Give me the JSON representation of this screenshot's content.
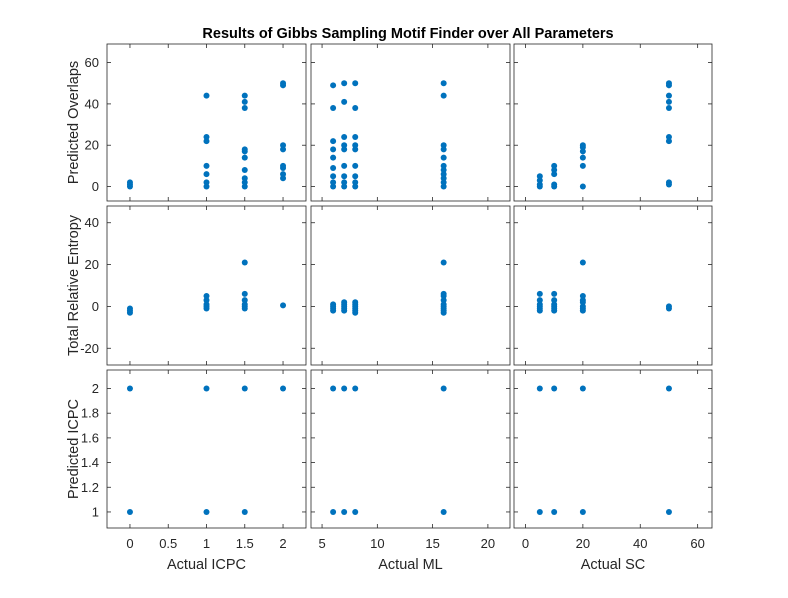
{
  "chart_data": {
    "type": "scatter",
    "title": "Results of Gibbs Sampling Motif Finder over All Parameters",
    "marker_color": "#0072BD",
    "grid": false,
    "columns": [
      {
        "xlabel": "Actual ICPC",
        "xlim": [
          -0.3,
          2.3
        ],
        "xticks": [
          0,
          0.5,
          1,
          1.5,
          2
        ],
        "xtick_labels": [
          "0",
          "0.5",
          "1",
          "1.5",
          "2"
        ]
      },
      {
        "xlabel": "Actual ML",
        "xlim": [
          4,
          22
        ],
        "xticks": [
          5,
          10,
          15,
          20
        ],
        "xtick_labels": [
          "5",
          "10",
          "15",
          "20"
        ]
      },
      {
        "xlabel": "Actual SC",
        "xlim": [
          -4,
          65
        ],
        "xticks": [
          0,
          20,
          40,
          60
        ],
        "xtick_labels": [
          "0",
          "20",
          "40",
          "60"
        ]
      }
    ],
    "rows": [
      {
        "ylabel": "Predicted Overlaps",
        "ylim": [
          -7,
          69
        ],
        "yticks": [
          0,
          20,
          40,
          60
        ],
        "ytick_labels": [
          "0",
          "20",
          "40",
          "60"
        ]
      },
      {
        "ylabel": "Total Relative Entropy",
        "ylim": [
          -28,
          48
        ],
        "yticks": [
          -20,
          0,
          20,
          40
        ],
        "ytick_labels": [
          "-20",
          "0",
          "20",
          "40"
        ]
      },
      {
        "ylabel": "Predicted ICPC",
        "ylim": [
          0.87,
          2.15
        ],
        "yticks": [
          1,
          1.2,
          1.4,
          1.6,
          1.8,
          2
        ],
        "ytick_labels": [
          "1",
          "1.2",
          "1.4",
          "1.6",
          "1.8",
          "2"
        ]
      }
    ],
    "panels": [
      {
        "row": 0,
        "col": 0,
        "points": [
          [
            0,
            0
          ],
          [
            0,
            1
          ],
          [
            0,
            2
          ],
          [
            1,
            0
          ],
          [
            1,
            2
          ],
          [
            1,
            6
          ],
          [
            1,
            10
          ],
          [
            1,
            22
          ],
          [
            1,
            24
          ],
          [
            1,
            44
          ],
          [
            1.5,
            0
          ],
          [
            1.5,
            2
          ],
          [
            1.5,
            4
          ],
          [
            1.5,
            8
          ],
          [
            1.5,
            14
          ],
          [
            1.5,
            17
          ],
          [
            1.5,
            18
          ],
          [
            1.5,
            38
          ],
          [
            1.5,
            41
          ],
          [
            1.5,
            44
          ],
          [
            2,
            4
          ],
          [
            2,
            6
          ],
          [
            2,
            9
          ],
          [
            2,
            10
          ],
          [
            2,
            18
          ],
          [
            2,
            20
          ],
          [
            2,
            49
          ],
          [
            2,
            50
          ]
        ]
      },
      {
        "row": 0,
        "col": 1,
        "points": [
          [
            6,
            0
          ],
          [
            6,
            2
          ],
          [
            6,
            5
          ],
          [
            6,
            9
          ],
          [
            6,
            14
          ],
          [
            6,
            18
          ],
          [
            6,
            22
          ],
          [
            6,
            38
          ],
          [
            6,
            49
          ],
          [
            7,
            0
          ],
          [
            7,
            2
          ],
          [
            7,
            5
          ],
          [
            7,
            10
          ],
          [
            7,
            18
          ],
          [
            7,
            20
          ],
          [
            7,
            24
          ],
          [
            7,
            41
          ],
          [
            7,
            50
          ],
          [
            8,
            0
          ],
          [
            8,
            2
          ],
          [
            8,
            5
          ],
          [
            8,
            10
          ],
          [
            8,
            18
          ],
          [
            8,
            20
          ],
          [
            8,
            24
          ],
          [
            8,
            38
          ],
          [
            8,
            50
          ],
          [
            16,
            0
          ],
          [
            16,
            2
          ],
          [
            16,
            4
          ],
          [
            16,
            6
          ],
          [
            16,
            8
          ],
          [
            16,
            10
          ],
          [
            16,
            14
          ],
          [
            16,
            18
          ],
          [
            16,
            20
          ],
          [
            16,
            44
          ],
          [
            16,
            50
          ]
        ]
      },
      {
        "row": 0,
        "col": 2,
        "points": [
          [
            5,
            0
          ],
          [
            5,
            1
          ],
          [
            5,
            3
          ],
          [
            5,
            5
          ],
          [
            10,
            0
          ],
          [
            10,
            1
          ],
          [
            10,
            6
          ],
          [
            10,
            8
          ],
          [
            10,
            10
          ],
          [
            20,
            0
          ],
          [
            20,
            10
          ],
          [
            20,
            14
          ],
          [
            20,
            17
          ],
          [
            20,
            19
          ],
          [
            20,
            20
          ],
          [
            50,
            1
          ],
          [
            50,
            2
          ],
          [
            50,
            22
          ],
          [
            50,
            24
          ],
          [
            50,
            38
          ],
          [
            50,
            41
          ],
          [
            50,
            44
          ],
          [
            50,
            49
          ],
          [
            50,
            50
          ]
        ]
      },
      {
        "row": 1,
        "col": 0,
        "points": [
          [
            0,
            -3
          ],
          [
            0,
            -2
          ],
          [
            0,
            -1
          ],
          [
            1,
            -1
          ],
          [
            1,
            0
          ],
          [
            1,
            1
          ],
          [
            1,
            3
          ],
          [
            1,
            5
          ],
          [
            1.5,
            -1
          ],
          [
            1.5,
            0
          ],
          [
            1.5,
            1
          ],
          [
            1.5,
            3
          ],
          [
            1.5,
            6
          ],
          [
            1.5,
            21
          ],
          [
            2,
            0.5
          ]
        ]
      },
      {
        "row": 1,
        "col": 1,
        "points": [
          [
            6,
            -2
          ],
          [
            6,
            -1
          ],
          [
            6,
            0
          ],
          [
            6,
            1
          ],
          [
            7,
            -2
          ],
          [
            7,
            -1
          ],
          [
            7,
            0
          ],
          [
            7,
            1
          ],
          [
            7,
            2
          ],
          [
            8,
            -3
          ],
          [
            8,
            -2
          ],
          [
            8,
            -1
          ],
          [
            8,
            0
          ],
          [
            8,
            1
          ],
          [
            8,
            2
          ],
          [
            16,
            -3
          ],
          [
            16,
            -2
          ],
          [
            16,
            -1
          ],
          [
            16,
            0
          ],
          [
            16,
            1
          ],
          [
            16,
            3
          ],
          [
            16,
            5
          ],
          [
            16,
            6
          ],
          [
            16,
            21
          ]
        ]
      },
      {
        "row": 1,
        "col": 2,
        "points": [
          [
            5,
            -2
          ],
          [
            5,
            -1
          ],
          [
            5,
            0
          ],
          [
            5,
            1
          ],
          [
            5,
            3
          ],
          [
            5,
            6
          ],
          [
            10,
            -2
          ],
          [
            10,
            -1
          ],
          [
            10,
            0
          ],
          [
            10,
            1
          ],
          [
            10,
            3
          ],
          [
            10,
            6
          ],
          [
            20,
            -2
          ],
          [
            20,
            -1
          ],
          [
            20,
            0
          ],
          [
            20,
            2
          ],
          [
            20,
            3
          ],
          [
            20,
            5
          ],
          [
            20,
            21
          ],
          [
            50,
            -1
          ],
          [
            50,
            0
          ]
        ]
      },
      {
        "row": 2,
        "col": 0,
        "points": [
          [
            0,
            1
          ],
          [
            0,
            2
          ],
          [
            1,
            1
          ],
          [
            1,
            2
          ],
          [
            1.5,
            1
          ],
          [
            1.5,
            2
          ],
          [
            2,
            2
          ]
        ]
      },
      {
        "row": 2,
        "col": 1,
        "points": [
          [
            6,
            1
          ],
          [
            6,
            2
          ],
          [
            7,
            1
          ],
          [
            7,
            2
          ],
          [
            8,
            1
          ],
          [
            8,
            2
          ],
          [
            16,
            1
          ],
          [
            16,
            2
          ]
        ]
      },
      {
        "row": 2,
        "col": 2,
        "points": [
          [
            5,
            1
          ],
          [
            5,
            2
          ],
          [
            10,
            1
          ],
          [
            10,
            2
          ],
          [
            20,
            1
          ],
          [
            20,
            2
          ],
          [
            50,
            1
          ],
          [
            50,
            2
          ]
        ]
      }
    ]
  }
}
